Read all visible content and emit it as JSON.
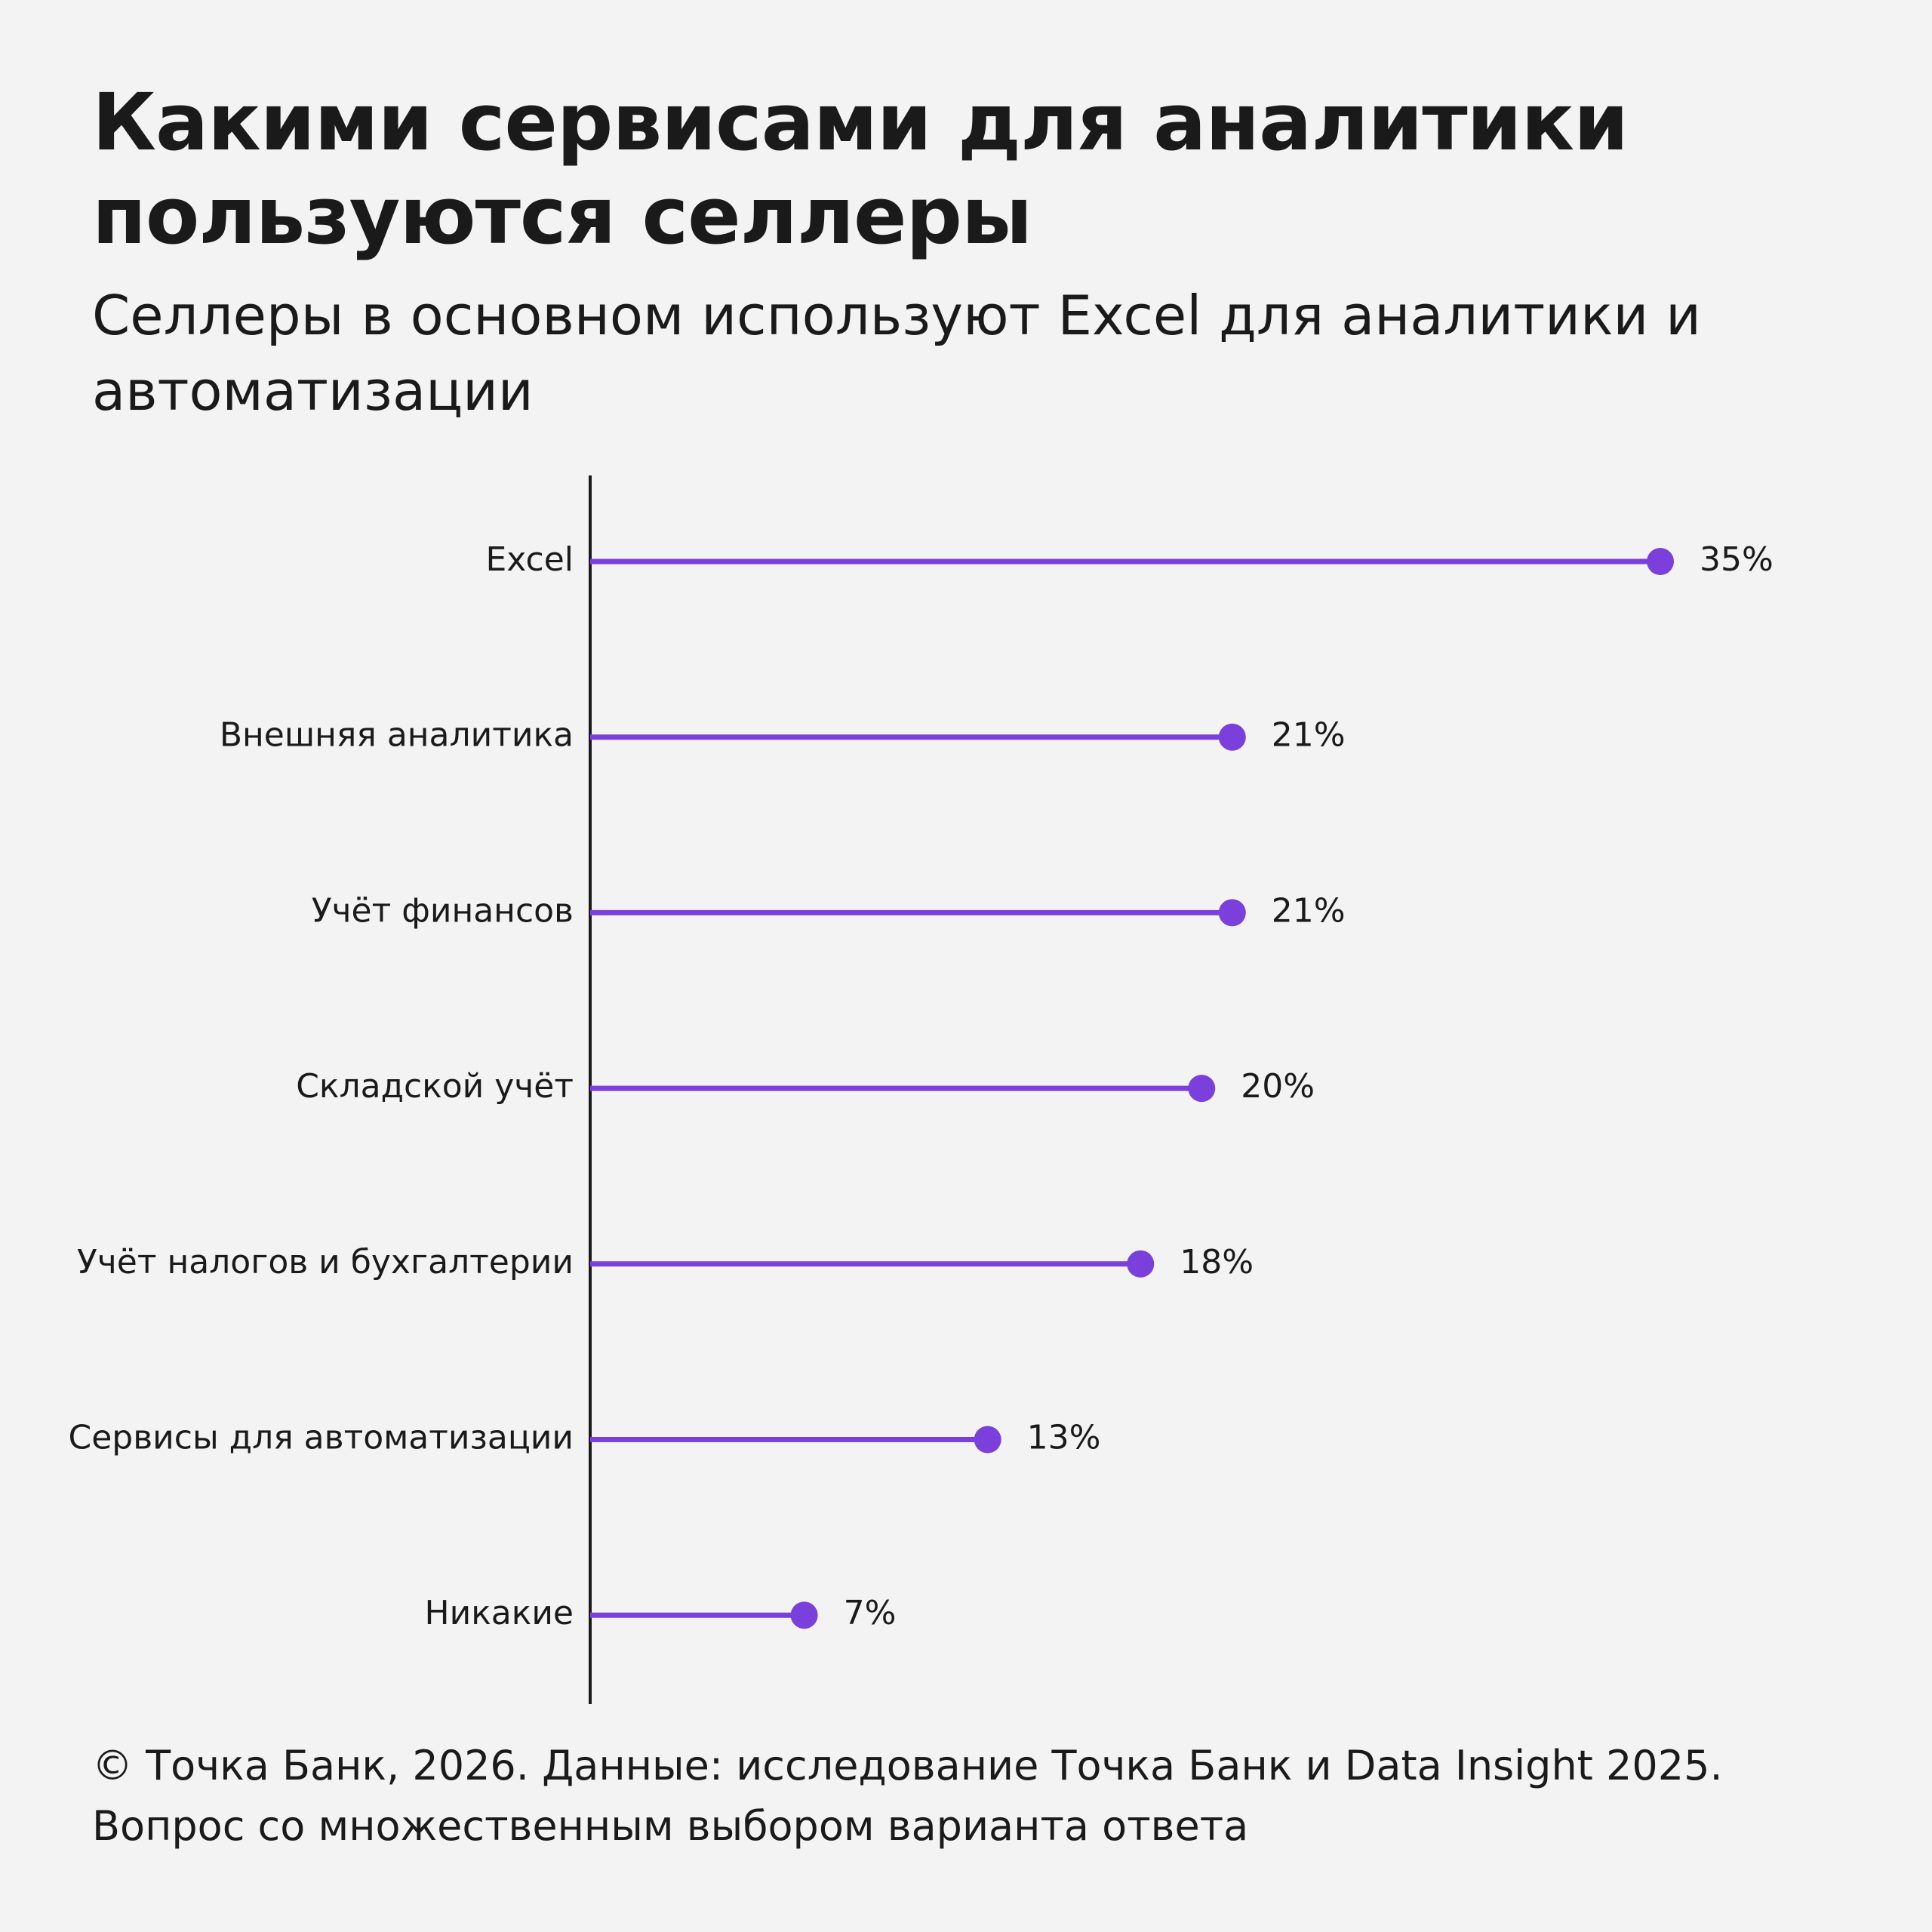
{
  "title": "Какими сервисами для аналитики пользуются селлеры",
  "subtitle": "Селлеры в основном используют Excel для аналитики и автоматизации",
  "footer": {
    "line1": "© Точка Банк, 2026. Данные: исследование Точка Банк и Data Insight 2025.",
    "line2": "Вопрос со множественным выбором варианта ответа"
  },
  "colors": {
    "accent": "#7b3fdc",
    "axis": "#1a1a1a",
    "background": "#f3f3f3",
    "text": "#1a1a1a"
  },
  "chart_data": {
    "type": "lollipop",
    "orientation": "horizontal",
    "categories": [
      "Excel",
      "Внешняя аналитика",
      "Учёт финансов",
      "Складской учёт",
      "Учёт налогов и бухгалтерии",
      "Сервисы для автоматизации",
      "Никакие"
    ],
    "values": [
      35,
      21,
      21,
      20,
      18,
      13,
      7
    ],
    "value_labels": [
      "35%",
      "21%",
      "21%",
      "20%",
      "18%",
      "13%",
      "7%"
    ],
    "unit": "%",
    "xlim": [
      0,
      35
    ],
    "grid": false,
    "legend": "none"
  }
}
